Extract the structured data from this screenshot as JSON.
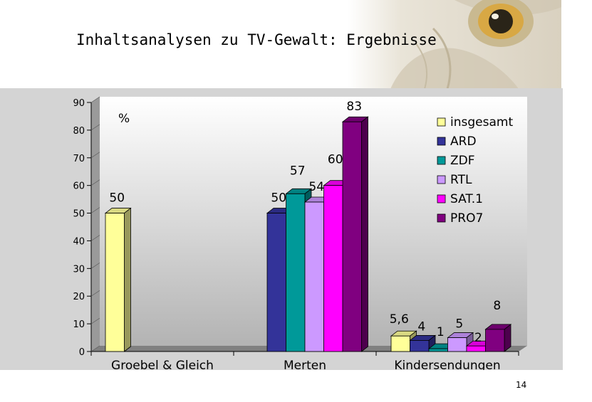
{
  "slide": {
    "title": "Inhaltsanalysen zu TV-Gewalt: Ergebnisse",
    "page_number": "14"
  },
  "chart_data": {
    "type": "bar",
    "title": "",
    "unit_label": "%",
    "categories": [
      "Groebel & Gleich",
      "Merten",
      "Kindersendungen"
    ],
    "ylim": [
      0,
      90
    ],
    "yticks": [
      0,
      10,
      20,
      30,
      40,
      50,
      60,
      70,
      80,
      90
    ],
    "grid": false,
    "legend": "top-right",
    "series": [
      {
        "name": "insgesamt",
        "color": "#ffff99",
        "values": [
          50,
          null,
          5.6
        ],
        "labels": [
          "50",
          "",
          "5,6"
        ]
      },
      {
        "name": "ARD",
        "color": "#333399",
        "values": [
          null,
          50,
          4
        ],
        "labels": [
          "",
          "50",
          "4"
        ]
      },
      {
        "name": "ZDF",
        "color": "#009999",
        "values": [
          null,
          57,
          1
        ],
        "labels": [
          "",
          "57",
          "1"
        ]
      },
      {
        "name": "RTL",
        "color": "#cc99ff",
        "values": [
          null,
          54,
          5
        ],
        "labels": [
          "",
          "54",
          "5"
        ]
      },
      {
        "name": "SAT.1",
        "color": "#ff00ff",
        "values": [
          null,
          60,
          2
        ],
        "labels": [
          "",
          "60",
          "2"
        ]
      },
      {
        "name": "PRO7",
        "color": "#800080",
        "values": [
          null,
          83,
          8
        ],
        "labels": [
          "",
          "83",
          "8"
        ]
      }
    ]
  }
}
